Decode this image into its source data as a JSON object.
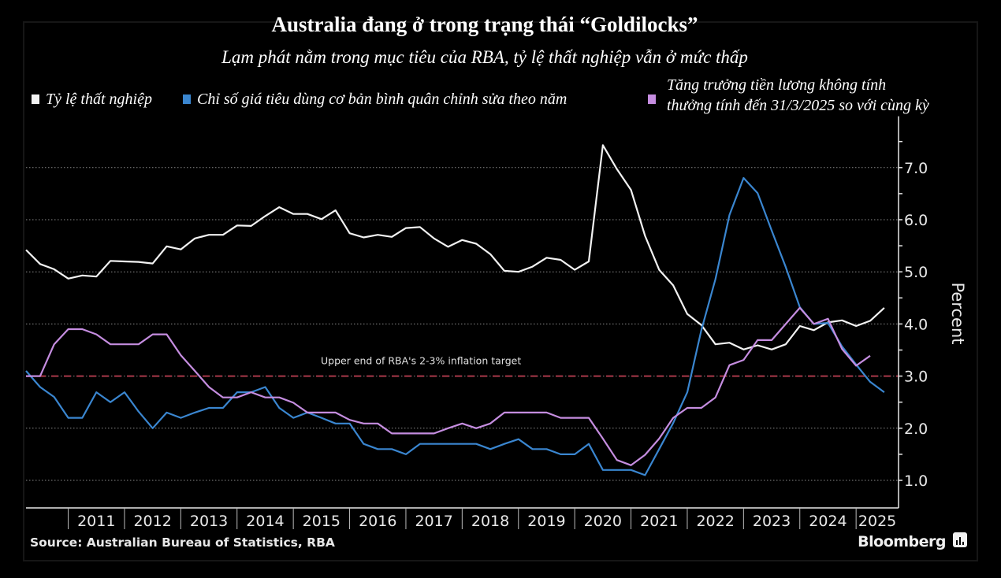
{
  "chart_data": {
    "type": "line",
    "title": "Australia đang ở trong trạng thái “Goldilocks”",
    "subtitle": "Lạm phát nằm trong mục tiêu của RBA, tỷ lệ thất nghiệp vẫn ở mức thấp",
    "ylabel": "Percent",
    "xlabel": "",
    "ylim": [
      0.5,
      8.0
    ],
    "yticks": [
      "1.0",
      "2.0",
      "3.0",
      "4.0",
      "5.0",
      "6.0",
      "7.0"
    ],
    "ytick_values": [
      1,
      2,
      3,
      4,
      5,
      6,
      7
    ],
    "x_note": "quarterly observations, first point is 2010 Q2",
    "years": [
      "2011",
      "2012",
      "2013",
      "2014",
      "2015",
      "2016",
      "2017",
      "2018",
      "2019",
      "2020",
      "2021",
      "2022",
      "2023",
      "2024",
      "2025"
    ],
    "grid": true,
    "legend_position": "top",
    "reference_line": {
      "value": 3.0,
      "label": "Upper end of RBA's 2-3% inflation target",
      "color": "#a8384a"
    },
    "series": [
      {
        "name": "Tỷ lệ thất nghiệp",
        "color": "#f2f2f2",
        "values": [
          5.42,
          5.15,
          5.05,
          4.87,
          4.93,
          4.91,
          5.21,
          5.2,
          5.19,
          5.16,
          5.49,
          5.43,
          5.64,
          5.71,
          5.71,
          5.89,
          5.88,
          6.07,
          6.24,
          6.11,
          6.11,
          6.01,
          6.18,
          5.74,
          5.66,
          5.71,
          5.67,
          5.84,
          5.86,
          5.64,
          5.48,
          5.61,
          5.54,
          5.34,
          5.02,
          5.0,
          5.1,
          5.27,
          5.23,
          5.04,
          5.2,
          7.43,
          6.97,
          6.57,
          5.69,
          5.04,
          4.74,
          4.19,
          3.98,
          3.61,
          3.64,
          3.51,
          3.59,
          3.51,
          3.61,
          3.96,
          3.88,
          4.03,
          4.07,
          3.96,
          4.06,
          4.31
        ]
      },
      {
        "name": "Chỉ số giá tiêu dùng cơ bản bình quân chỉnh sửa theo năm",
        "color": "#3a86d0",
        "values": [
          3.1,
          2.79,
          2.6,
          2.2,
          2.2,
          2.69,
          2.5,
          2.69,
          2.32,
          2.0,
          2.3,
          2.2,
          2.3,
          2.39,
          2.39,
          2.69,
          2.69,
          2.79,
          2.39,
          2.2,
          2.3,
          2.2,
          2.09,
          2.09,
          1.7,
          1.6,
          1.6,
          1.5,
          1.7,
          1.7,
          1.7,
          1.7,
          1.7,
          1.6,
          1.7,
          1.79,
          1.6,
          1.6,
          1.5,
          1.5,
          1.7,
          1.2,
          1.2,
          1.2,
          1.1,
          1.6,
          2.1,
          2.69,
          3.88,
          4.86,
          6.09,
          6.8,
          6.51,
          5.79,
          5.09,
          4.32,
          4.0,
          4.02,
          3.57,
          3.22,
          2.89,
          2.69
        ]
      },
      {
        "name": "Tăng trưởng tiền lương không tính thưởng tính đến 31/3/2025 so với cùng kỳ",
        "name_lines": [
          "Tăng trưởng tiền lương không tính",
          "thưởng tính đến 31/3/2025 so với cùng kỳ"
        ],
        "color": "#c58de0",
        "values": [
          3.0,
          3.0,
          3.61,
          3.9,
          3.9,
          3.8,
          3.61,
          3.61,
          3.61,
          3.8,
          3.8,
          3.4,
          3.1,
          2.79,
          2.59,
          2.59,
          2.69,
          2.59,
          2.59,
          2.49,
          2.3,
          2.3,
          2.3,
          2.16,
          2.09,
          2.09,
          1.9,
          1.9,
          1.9,
          1.9,
          2.0,
          2.09,
          2.0,
          2.09,
          2.3,
          2.3,
          2.3,
          2.3,
          2.2,
          2.2,
          2.2,
          1.8,
          1.39,
          1.29,
          1.49,
          1.8,
          2.2,
          2.39,
          2.39,
          2.59,
          3.21,
          3.31,
          3.69,
          3.69,
          4.0,
          4.31,
          4.0,
          4.1,
          3.52,
          3.2,
          3.39
        ]
      }
    ],
    "source": "Source: Australian Bureau of Statistics, RBA",
    "brand": "Bloomberg"
  }
}
